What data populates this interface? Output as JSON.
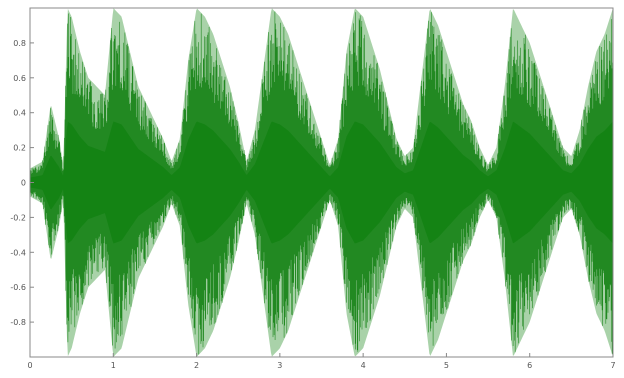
{
  "chart_data": {
    "type": "area",
    "title": "",
    "xlabel": "",
    "ylabel": "",
    "xlim": [
      0,
      7
    ],
    "ylim": [
      -1,
      1
    ],
    "x_ticks": [
      0,
      1,
      2,
      3,
      4,
      5,
      6,
      7
    ],
    "x_tick_labels": [
      "0",
      "1",
      "2",
      "3",
      "4",
      "5",
      "6",
      "7"
    ],
    "y_ticks": [
      0.8,
      0.6,
      0.4,
      0.2,
      0,
      -0.2,
      -0.4,
      -0.6,
      -0.8
    ],
    "y_tick_labels": [
      "0.8",
      "0.6",
      "0.4",
      "0.2",
      "0",
      "-0.2",
      "-0.4",
      "-0.6",
      "-0.8"
    ],
    "grid": false,
    "series": [
      {
        "color": "#0a7d0a",
        "x": [
          0,
          0.15,
          0.25,
          0.35,
          0.4,
          0.45,
          0.5,
          0.6,
          0.7,
          0.8,
          0.9,
          1.0,
          1.1,
          1.2,
          1.3,
          1.4,
          1.5,
          1.6,
          1.7,
          1.8,
          1.9,
          2.0,
          2.1,
          2.2,
          2.3,
          2.4,
          2.5,
          2.6,
          2.7,
          2.8,
          2.9,
          3.0,
          3.1,
          3.2,
          3.3,
          3.4,
          3.5,
          3.6,
          3.7,
          3.8,
          3.9,
          4.0,
          4.1,
          4.2,
          4.3,
          4.4,
          4.5,
          4.6,
          4.7,
          4.8,
          4.9,
          5.0,
          5.1,
          5.2,
          5.3,
          5.4,
          5.5,
          5.6,
          5.7,
          5.8,
          5.9,
          6.0,
          6.1,
          6.2,
          6.3,
          6.4,
          6.5,
          6.6,
          6.7,
          6.8,
          6.9,
          7.0
        ],
        "y_max": [
          0.08,
          0.12,
          0.45,
          0.25,
          0.1,
          1.0,
          0.95,
          0.75,
          0.6,
          0.55,
          0.5,
          1.0,
          0.95,
          0.75,
          0.55,
          0.45,
          0.35,
          0.25,
          0.12,
          0.25,
          0.7,
          1.0,
          0.95,
          0.85,
          0.7,
          0.55,
          0.35,
          0.12,
          0.3,
          0.65,
          1.0,
          0.95,
          0.85,
          0.7,
          0.55,
          0.4,
          0.25,
          0.1,
          0.25,
          0.75,
          1.0,
          0.95,
          0.8,
          0.65,
          0.45,
          0.25,
          0.15,
          0.2,
          0.6,
          1.0,
          0.9,
          0.75,
          0.6,
          0.45,
          0.35,
          0.2,
          0.1,
          0.2,
          0.55,
          1.0,
          0.9,
          0.8,
          0.65,
          0.5,
          0.35,
          0.2,
          0.15,
          0.3,
          0.55,
          0.75,
          0.85,
          1.0
        ],
        "y_min": [
          -0.08,
          -0.12,
          -0.45,
          -0.25,
          -0.1,
          -1.0,
          -0.95,
          -0.75,
          -0.6,
          -0.55,
          -0.5,
          -1.0,
          -0.95,
          -0.75,
          -0.55,
          -0.45,
          -0.35,
          -0.25,
          -0.12,
          -0.25,
          -0.7,
          -1.0,
          -0.95,
          -0.85,
          -0.7,
          -0.55,
          -0.35,
          -0.12,
          -0.3,
          -0.65,
          -1.0,
          -0.95,
          -0.85,
          -0.7,
          -0.55,
          -0.4,
          -0.25,
          -0.1,
          -0.25,
          -0.75,
          -1.0,
          -0.95,
          -0.8,
          -0.65,
          -0.45,
          -0.25,
          -0.15,
          -0.2,
          -0.6,
          -1.0,
          -0.9,
          -0.75,
          -0.6,
          -0.45,
          -0.35,
          -0.2,
          -0.1,
          -0.2,
          -0.55,
          -1.0,
          -0.9,
          -0.8,
          -0.65,
          -0.5,
          -0.35,
          -0.2,
          -0.15,
          -0.3,
          -0.55,
          -0.75,
          -0.85,
          -1.0
        ]
      }
    ]
  }
}
